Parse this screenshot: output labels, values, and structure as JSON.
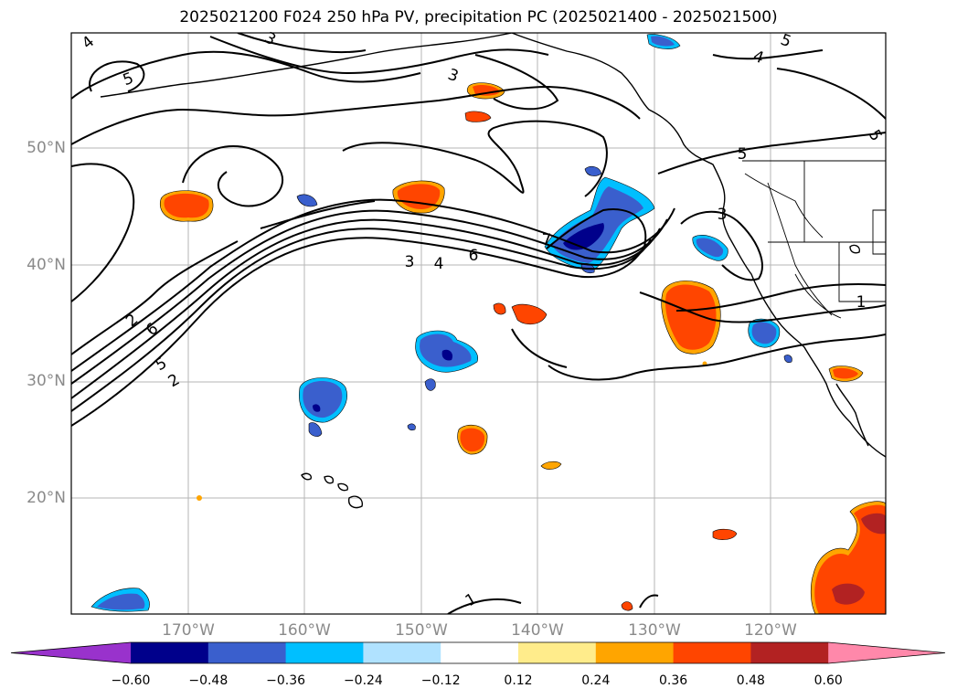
{
  "title": "2025021200 F024 250 hPa PV, precipitation PC (2025021400 - 2025021500)",
  "lat_labels": [
    "50°N",
    "40°N",
    "30°N",
    "20°N"
  ],
  "lon_labels": [
    "170°W",
    "160°W",
    "150°W",
    "140°W",
    "130°W",
    "120°W"
  ],
  "contour_labels": [
    "4",
    "5",
    "5",
    "4",
    "5",
    "3",
    "3",
    "7",
    "6",
    "4",
    "3",
    "2",
    "6",
    "5",
    "2",
    "1",
    "1",
    "3",
    "5"
  ],
  "colorbar": {
    "ticks": [
      "−0.60",
      "−0.48",
      "−0.36",
      "−0.24",
      "−0.12",
      "0.12",
      "0.24",
      "0.36",
      "0.48",
      "0.60"
    ],
    "colors": [
      "#9932cc",
      "#00008b",
      "#3a5fcd",
      "#00bfff",
      "#b0e2ff",
      "#ffffff",
      "#ffec8b",
      "#ffa500",
      "#ff4500",
      "#b22222",
      "#ff88aa"
    ]
  }
}
